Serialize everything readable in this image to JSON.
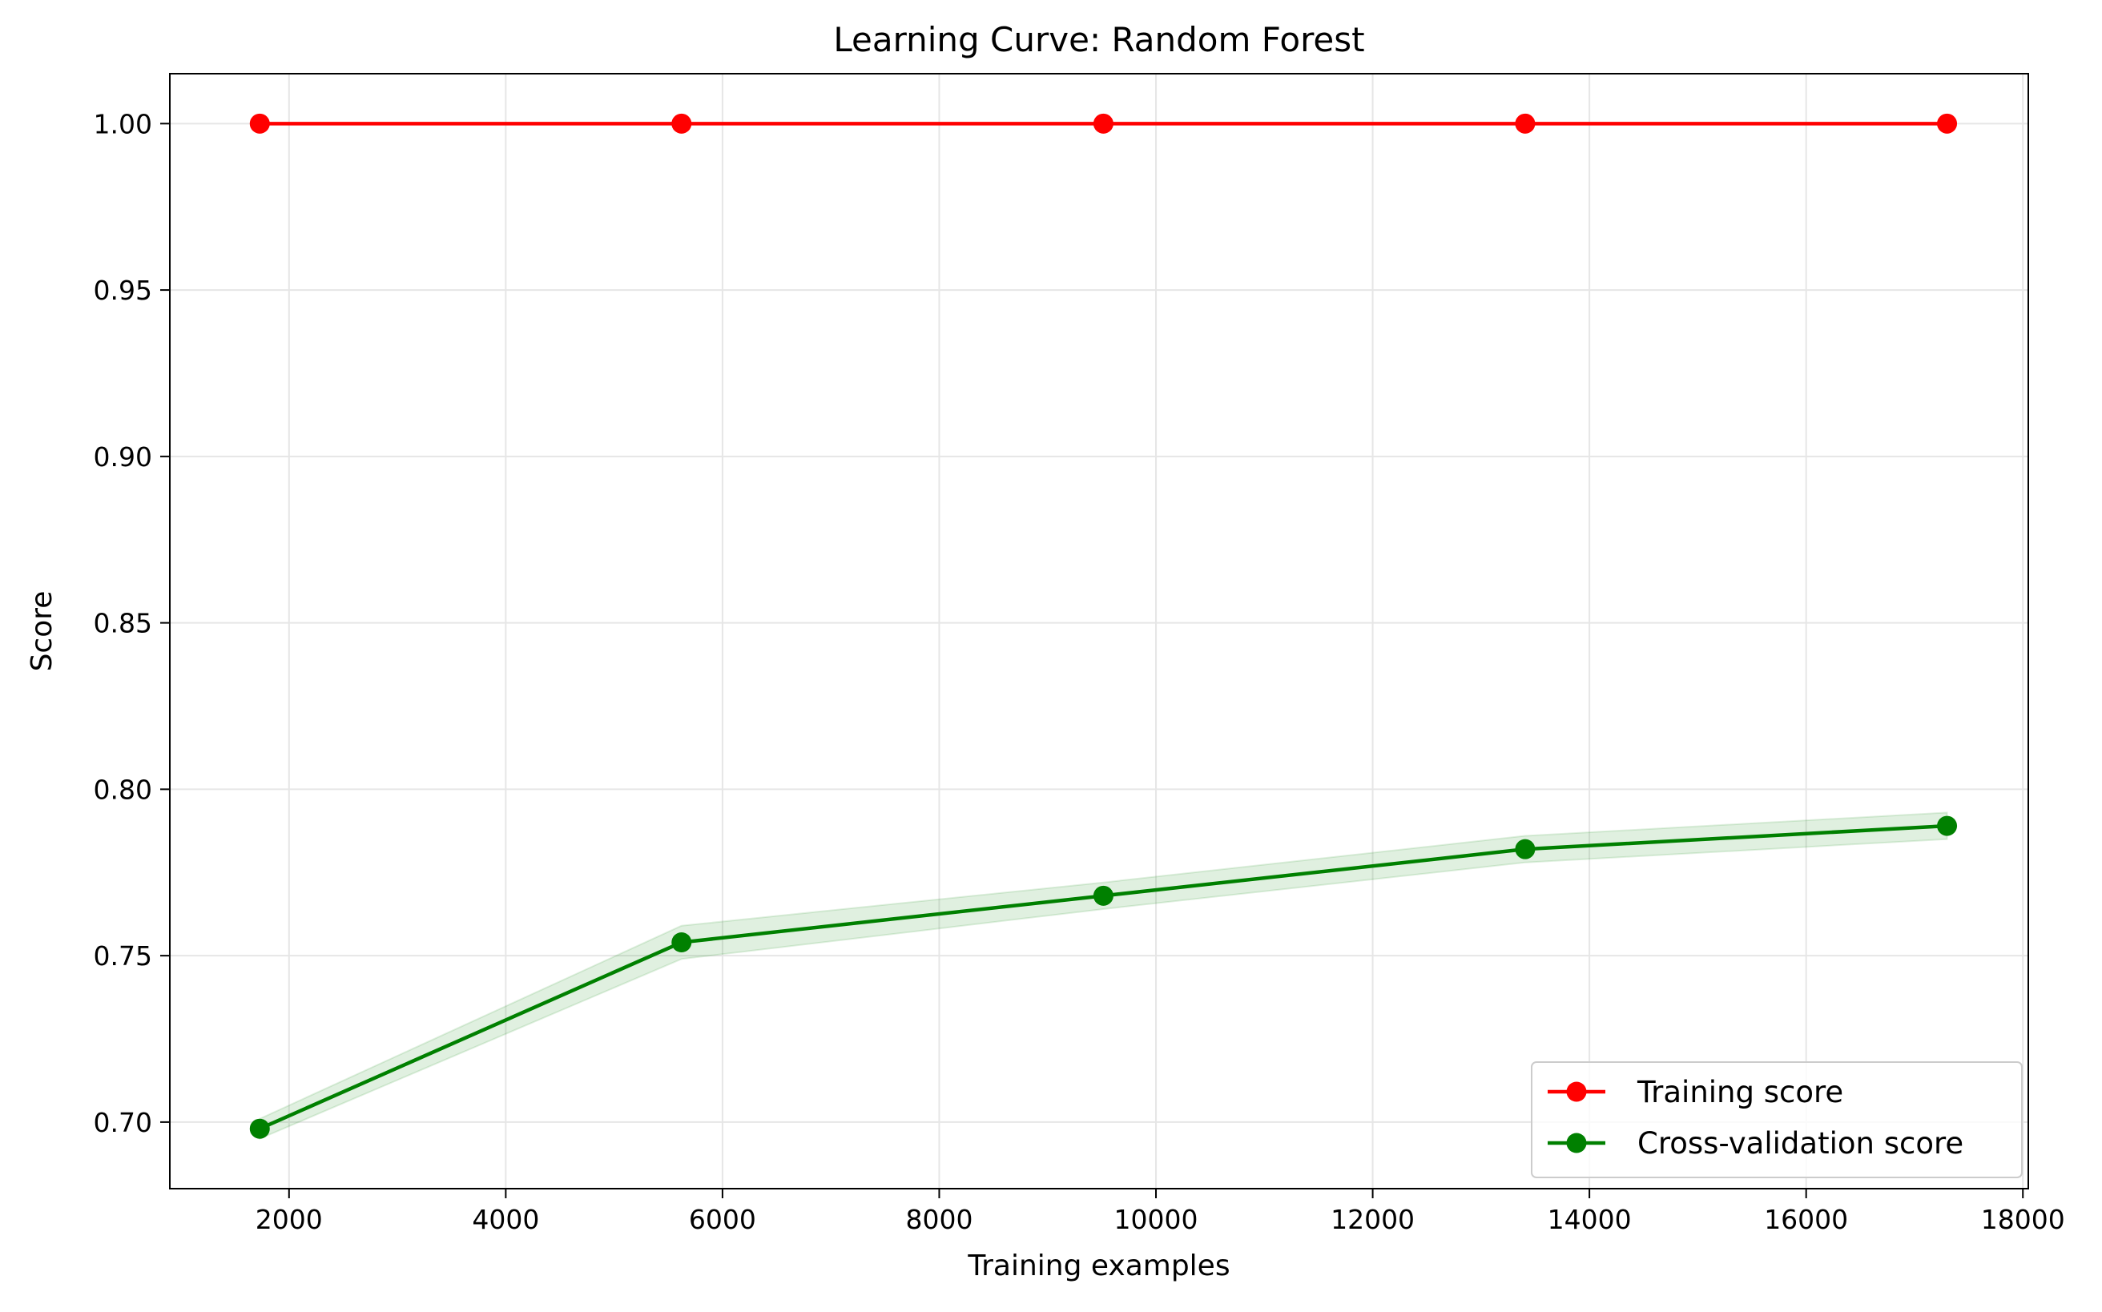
{
  "chart_data": {
    "type": "line",
    "title": "Learning Curve: Random Forest",
    "xlabel": "Training examples",
    "ylabel": "Score",
    "xlim": [
      900,
      18050
    ],
    "ylim": [
      0.68,
      1.015
    ],
    "xticks": [
      2000,
      4000,
      6000,
      8000,
      10000,
      12000,
      14000,
      16000,
      18000
    ],
    "xtick_labels": [
      "2000",
      "4000",
      "6000",
      "8000",
      "10000",
      "12000",
      "14000",
      "16000",
      "18000"
    ],
    "yticks": [
      0.7,
      0.75,
      0.8,
      0.85,
      0.9,
      0.95,
      1.0
    ],
    "ytick_labels": [
      "0.70",
      "0.75",
      "0.80",
      "0.85",
      "0.90",
      "0.95",
      "1.00"
    ],
    "grid": true,
    "legend_position": "lower-right",
    "x": [
      1730,
      5622,
      9515,
      13407,
      17300
    ],
    "series": [
      {
        "name": "Training score",
        "color": "#ff0000",
        "values": [
          1.0,
          1.0,
          1.0,
          1.0,
          1.0
        ],
        "band": [
          0.0,
          0.0,
          0.0,
          0.0,
          0.0
        ]
      },
      {
        "name": "Cross-validation score",
        "color": "#008000",
        "band_color": "#008000",
        "values": [
          0.698,
          0.754,
          0.768,
          0.782,
          0.789
        ],
        "band": [
          0.003,
          0.005,
          0.004,
          0.004,
          0.004
        ]
      }
    ]
  }
}
